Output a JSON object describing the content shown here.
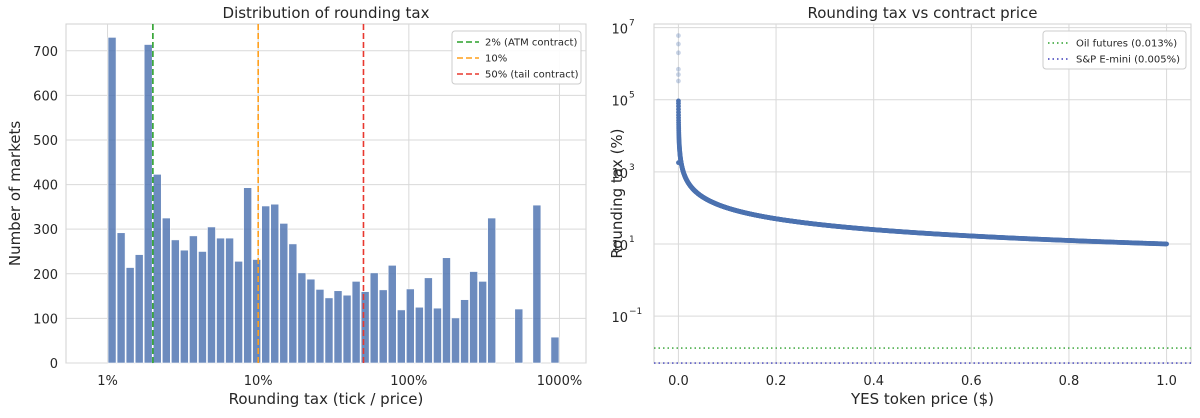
{
  "chart_data": [
    {
      "type": "bar",
      "title": "Distribution of rounding tax",
      "xlabel": "Rounding tax (tick / price)",
      "ylabel": "Number of markets",
      "x_scale": "log",
      "x_ticks": [
        {
          "value": 1,
          "label": "1%"
        },
        {
          "value": 10,
          "label": "10%"
        },
        {
          "value": 100,
          "label": "100%"
        },
        {
          "value": 1000,
          "label": "1000%"
        }
      ],
      "ylim": [
        0,
        760
      ],
      "y_ticks": [
        0,
        100,
        200,
        300,
        400,
        500,
        600,
        700
      ],
      "xlim_pct": [
        0.53,
        1500
      ],
      "bin_edges_pct": [
        1.0,
        1.148,
        1.318,
        1.514,
        1.738,
        1.995,
        2.291,
        2.63,
        3.02,
        3.467,
        3.981,
        4.571,
        5.248,
        6.026,
        6.918,
        7.943,
        9.12,
        10.47,
        12.02,
        13.8,
        15.85,
        18.2,
        20.89,
        23.99,
        27.54,
        31.62,
        36.31,
        41.69,
        47.86,
        54.95,
        63.1,
        72.44,
        83.18,
        95.5,
        109.6,
        125.9,
        144.5,
        166.0,
        190.5,
        218.8,
        251.2,
        288.4,
        331.1,
        380.2,
        436.5,
        501.2,
        575.4,
        660.7,
        758.6,
        871.0,
        1000.0
      ],
      "values": [
        730,
        292,
        214,
        243,
        714,
        423,
        325,
        276,
        253,
        285,
        250,
        305,
        280,
        280,
        228,
        393,
        232,
        352,
        356,
        313,
        267,
        202,
        188,
        165,
        146,
        162,
        152,
        183,
        160,
        202,
        164,
        219,
        119,
        166,
        125,
        191,
        123,
        236,
        101,
        142,
        205,
        183,
        325,
        0,
        0,
        121,
        0,
        354,
        0,
        58
      ],
      "bar_color": "#4c72b0",
      "vlines": [
        {
          "value": 2,
          "name": "2% (ATM contract)",
          "color": "#2ca02c"
        },
        {
          "value": 10,
          "name": "10%",
          "color": "#ff9f1c"
        },
        {
          "value": 50,
          "name": "50% (tail contract)",
          "color": "#e8382f"
        }
      ],
      "legend": "top-right",
      "grid": true
    },
    {
      "type": "scatter",
      "title": "Rounding tax vs contract price",
      "xlabel": "YES token price ($)",
      "ylabel": "Rounding tax (%)",
      "y_scale": "log",
      "xlim": [
        -0.05,
        1.05
      ],
      "x_ticks": [
        0.0,
        0.2,
        0.4,
        0.6,
        0.8,
        1.0
      ],
      "x_tick_labels": [
        "0.0",
        "0.2",
        "0.4",
        "0.6",
        "0.8",
        "1.0"
      ],
      "ylim_exp": [
        -2.3,
        7.1
      ],
      "y_ticks": [
        {
          "exp": -1,
          "base": "10",
          "power": "−1"
        },
        {
          "exp": 1,
          "base": "10",
          "power": "1"
        },
        {
          "exp": 3,
          "base": "10",
          "power": "3"
        },
        {
          "exp": 5,
          "base": "10",
          "power": "5"
        },
        {
          "exp": 7,
          "base": "10",
          "power": "7"
        }
      ],
      "curve": "tax_pct = 0.1 / price",
      "x_range": [
        0.0001,
        1.0
      ],
      "outliers": [
        {
          "x": 0.0,
          "y": 6000000
        },
        {
          "x": 0.0,
          "y": 3500000
        },
        {
          "x": 0.0,
          "y": 2000000
        },
        {
          "x": 0.0,
          "y": 700000
        },
        {
          "x": 0.0,
          "y": 500000
        },
        {
          "x": 0.0,
          "y": 330000
        },
        {
          "x": 0.0001,
          "y": 1800
        }
      ],
      "point_color": "#4c72b0",
      "hlines": [
        {
          "value": 0.013,
          "name": "Oil futures (0.013%)",
          "color": "#2ca02c"
        },
        {
          "value": 0.005,
          "name": "S&P E-mini (0.005%)",
          "color": "#3b3bb8"
        }
      ],
      "legend": "top-right",
      "grid": true
    }
  ]
}
